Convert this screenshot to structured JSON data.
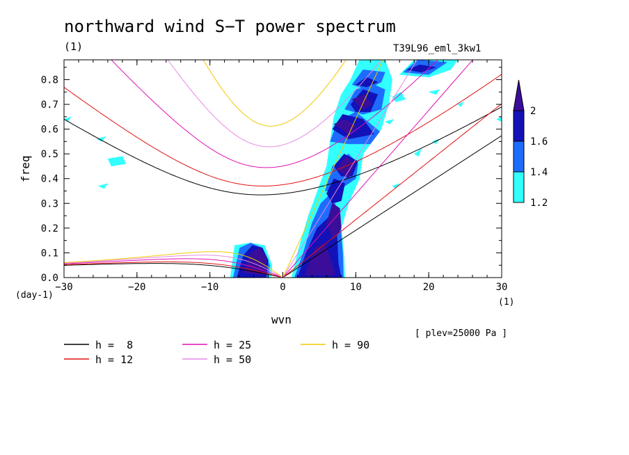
{
  "chart_data": {
    "type": "contour",
    "title": "northward wind S−T power spectrum",
    "unit_left": "(1)",
    "experiment": "T39L96_eml_3kw1",
    "xlabel": "wvn",
    "ylabel": "freq",
    "x_unit": "(1)",
    "y_unit": "(day-1)",
    "annotation": "[ plev=25000 Pa ]",
    "xlim": [
      -30,
      30
    ],
    "ylim": [
      0,
      0.88
    ],
    "x_ticks": [
      -30,
      -20,
      -10,
      0,
      10,
      20,
      30
    ],
    "x_tick_labels": [
      "−30",
      "−20",
      "−10",
      "0",
      "10",
      "20",
      "30"
    ],
    "y_ticks": [
      0,
      0.1,
      0.2,
      0.3,
      0.4,
      0.5,
      0.6,
      0.7,
      0.8
    ],
    "y_tick_labels": [
      "0.0",
      "0.1",
      "0.2",
      "0.3",
      "0.4",
      "0.5",
      "0.6",
      "0.7",
      "0.8"
    ],
    "colorbar": {
      "levels": [
        1.2,
        1.4,
        1.6,
        2
      ],
      "level_labels": [
        "1.2",
        "1.4",
        "1.6",
        "2"
      ],
      "colors": [
        "#33ffff",
        "#1e6cff",
        "#1212b8",
        "#3a0e9a"
      ]
    },
    "dispersion_curves": [
      {
        "label": "h =  8",
        "h": 8,
        "color": "#000000"
      },
      {
        "label": "h = 12",
        "h": 12,
        "color": "#e01010"
      },
      {
        "label": "h = 25",
        "h": 25,
        "color": "#e010b4"
      },
      {
        "label": "h = 50",
        "h": 50,
        "color": "#e48ae4"
      },
      {
        "label": "h = 90",
        "h": 90,
        "color": "#f0c800"
      }
    ],
    "power_regions": [
      {
        "level": 4,
        "polygon": [
          [
            -5.4,
            0.02
          ],
          [
            -4.4,
            0.1
          ],
          [
            -3.2,
            0.12
          ],
          [
            -2.2,
            0.08
          ],
          [
            -2.5,
            0.01
          ]
        ]
      },
      {
        "level": 4,
        "polygon": [
          [
            3.0,
            0.01
          ],
          [
            4.4,
            0.12
          ],
          [
            5.8,
            0.14
          ],
          [
            6.8,
            0.05
          ],
          [
            7.2,
            0.01
          ]
        ]
      },
      {
        "level": 4,
        "polygon": [
          [
            6.0,
            0.22
          ],
          [
            6.8,
            0.3
          ],
          [
            7.8,
            0.28
          ],
          [
            8.0,
            0.2
          ],
          [
            7.0,
            0.15
          ]
        ]
      },
      {
        "level": 4,
        "polygon": [
          [
            7.5,
            0.44
          ],
          [
            8.6,
            0.49
          ],
          [
            9.8,
            0.46
          ],
          [
            9.0,
            0.4
          ]
        ]
      },
      {
        "level": 4,
        "polygon": [
          [
            7.0,
            0.62
          ],
          [
            8.5,
            0.64
          ],
          [
            10.2,
            0.61
          ],
          [
            9.0,
            0.58
          ]
        ]
      },
      {
        "level": 4,
        "polygon": [
          [
            9.5,
            0.72
          ],
          [
            11.2,
            0.74
          ],
          [
            12.2,
            0.7
          ],
          [
            11.0,
            0.68
          ]
        ]
      },
      {
        "level": 3,
        "polygon": [
          [
            -6.3,
            0.0
          ],
          [
            -5.4,
            0.09
          ],
          [
            -4.2,
            0.13
          ],
          [
            -2.8,
            0.12
          ],
          [
            -2.0,
            0.07
          ],
          [
            -2.3,
            0.0
          ]
        ]
      },
      {
        "level": 3,
        "polygon": [
          [
            2.0,
            0.0
          ],
          [
            3.2,
            0.1
          ],
          [
            4.7,
            0.2
          ],
          [
            6.5,
            0.25
          ],
          [
            7.4,
            0.18
          ],
          [
            7.6,
            0.06
          ],
          [
            8.0,
            0.0
          ]
        ]
      },
      {
        "level": 3,
        "polygon": [
          [
            6.0,
            0.34
          ],
          [
            7.0,
            0.4
          ],
          [
            8.5,
            0.38
          ],
          [
            8.0,
            0.31
          ],
          [
            6.8,
            0.3
          ]
        ]
      },
      {
        "level": 3,
        "polygon": [
          [
            7.0,
            0.45
          ],
          [
            8.4,
            0.5
          ],
          [
            10.3,
            0.47
          ],
          [
            9.5,
            0.41
          ],
          [
            8.0,
            0.41
          ]
        ]
      },
      {
        "level": 3,
        "polygon": [
          [
            6.8,
            0.6
          ],
          [
            8.2,
            0.66
          ],
          [
            11.0,
            0.64
          ],
          [
            12.5,
            0.58
          ],
          [
            9.0,
            0.56
          ]
        ]
      },
      {
        "level": 3,
        "polygon": [
          [
            9.3,
            0.7
          ],
          [
            11.0,
            0.76
          ],
          [
            13.0,
            0.74
          ],
          [
            12.0,
            0.67
          ],
          [
            10.0,
            0.67
          ]
        ]
      },
      {
        "level": 3,
        "polygon": [
          [
            10.0,
            0.78
          ],
          [
            11.5,
            0.81
          ],
          [
            13.0,
            0.79
          ],
          [
            11.5,
            0.77
          ]
        ]
      },
      {
        "level": 3,
        "polygon": [
          [
            17.0,
            0.84
          ],
          [
            18.8,
            0.86
          ],
          [
            21.0,
            0.85
          ],
          [
            19.0,
            0.83
          ]
        ]
      },
      {
        "level": 2,
        "polygon": [
          [
            -6.8,
            0.0
          ],
          [
            -5.9,
            0.12
          ],
          [
            -4.4,
            0.14
          ],
          [
            -2.8,
            0.12
          ],
          [
            -1.8,
            0.05
          ],
          [
            -2.0,
            0.0
          ]
        ]
      },
      {
        "level": 2,
        "polygon": [
          [
            1.6,
            0.0
          ],
          [
            2.8,
            0.1
          ],
          [
            4.0,
            0.22
          ],
          [
            5.2,
            0.3
          ],
          [
            6.6,
            0.34
          ],
          [
            7.8,
            0.25
          ],
          [
            8.2,
            0.1
          ],
          [
            8.3,
            0.0
          ]
        ]
      },
      {
        "level": 2,
        "polygon": [
          [
            5.8,
            0.35
          ],
          [
            6.8,
            0.45
          ],
          [
            9.0,
            0.5
          ],
          [
            10.3,
            0.46
          ],
          [
            10.0,
            0.4
          ],
          [
            8.0,
            0.36
          ]
        ]
      },
      {
        "level": 2,
        "polygon": [
          [
            6.5,
            0.55
          ],
          [
            7.5,
            0.63
          ],
          [
            10.0,
            0.67
          ],
          [
            13.3,
            0.59
          ],
          [
            12.0,
            0.54
          ],
          [
            9.0,
            0.54
          ]
        ]
      },
      {
        "level": 2,
        "polygon": [
          [
            8.5,
            0.68
          ],
          [
            10.0,
            0.76
          ],
          [
            12.5,
            0.78
          ],
          [
            14.0,
            0.76
          ],
          [
            13.5,
            0.68
          ],
          [
            11.0,
            0.66
          ]
        ]
      },
      {
        "level": 2,
        "polygon": [
          [
            9.5,
            0.78
          ],
          [
            11.0,
            0.84
          ],
          [
            14.0,
            0.83
          ],
          [
            13.5,
            0.79
          ],
          [
            11.5,
            0.76
          ]
        ]
      },
      {
        "level": 2,
        "polygon": [
          [
            16.5,
            0.83
          ],
          [
            18.5,
            0.88
          ],
          [
            22.5,
            0.87
          ],
          [
            20.0,
            0.82
          ]
        ]
      },
      {
        "level": 1,
        "polygon": [
          [
            -7.2,
            0.0
          ],
          [
            -6.6,
            0.13
          ],
          [
            -4.5,
            0.14
          ],
          [
            -2.5,
            0.13
          ],
          [
            -1.5,
            0.05
          ],
          [
            -1.6,
            0.0
          ]
        ]
      },
      {
        "level": 1,
        "polygon": [
          [
            1.2,
            0.0
          ],
          [
            2.2,
            0.12
          ],
          [
            3.5,
            0.25
          ],
          [
            5.0,
            0.37
          ],
          [
            6.0,
            0.45
          ],
          [
            6.5,
            0.55
          ],
          [
            7.0,
            0.65
          ],
          [
            8.0,
            0.74
          ],
          [
            9.3,
            0.8
          ],
          [
            10.5,
            0.88
          ],
          [
            14.0,
            0.88
          ],
          [
            14.5,
            0.84
          ],
          [
            15.0,
            0.8
          ],
          [
            14.5,
            0.7
          ],
          [
            13.5,
            0.6
          ],
          [
            11.0,
            0.5
          ],
          [
            10.5,
            0.4
          ],
          [
            9.0,
            0.3
          ],
          [
            8.0,
            0.2
          ],
          [
            8.4,
            0.08
          ],
          [
            8.5,
            0.0
          ]
        ]
      },
      {
        "level": 1,
        "polygon": [
          [
            16.0,
            0.82
          ],
          [
            18.0,
            0.88
          ],
          [
            24.0,
            0.88
          ],
          [
            23.0,
            0.84
          ],
          [
            20.0,
            0.81
          ]
        ]
      },
      {
        "level": 1,
        "polygon": [
          [
            -24.0,
            0.48
          ],
          [
            -22.0,
            0.49
          ],
          [
            -21.5,
            0.46
          ],
          [
            -23.5,
            0.45
          ]
        ]
      },
      {
        "level": 1,
        "polygon": [
          [
            -25.5,
            0.56
          ],
          [
            -24.3,
            0.57
          ],
          [
            -24.8,
            0.55
          ]
        ]
      },
      {
        "level": 1,
        "polygon": [
          [
            -25.3,
            0.37
          ],
          [
            -24.0,
            0.38
          ],
          [
            -24.5,
            0.36
          ]
        ]
      },
      {
        "level": 1,
        "polygon": [
          [
            15.0,
            0.73
          ],
          [
            16.2,
            0.75
          ],
          [
            16.8,
            0.72
          ],
          [
            15.5,
            0.71
          ]
        ]
      },
      {
        "level": 1,
        "polygon": [
          [
            20.0,
            0.75
          ],
          [
            21.5,
            0.76
          ],
          [
            21.0,
            0.74
          ]
        ]
      },
      {
        "level": 1,
        "polygon": [
          [
            18.0,
            0.5
          ],
          [
            19.0,
            0.52
          ],
          [
            18.6,
            0.49
          ]
        ]
      },
      {
        "level": 1,
        "polygon": [
          [
            14.0,
            0.63
          ],
          [
            15.2,
            0.64
          ],
          [
            14.7,
            0.62
          ]
        ]
      },
      {
        "level": 1,
        "polygon": [
          [
            20.5,
            0.55
          ],
          [
            21.5,
            0.56
          ],
          [
            21.0,
            0.54
          ]
        ]
      },
      {
        "level": 1,
        "polygon": [
          [
            24.0,
            0.7
          ],
          [
            24.8,
            0.71
          ],
          [
            24.4,
            0.69
          ]
        ]
      },
      {
        "level": 1,
        "polygon": [
          [
            29.3,
            0.64
          ],
          [
            30.0,
            0.65
          ],
          [
            30.0,
            0.63
          ]
        ]
      },
      {
        "level": 1,
        "polygon": [
          [
            15.0,
            0.37
          ],
          [
            16.0,
            0.38
          ],
          [
            15.5,
            0.36
          ]
        ]
      },
      {
        "level": 1,
        "polygon": [
          [
            -30.0,
            0.64
          ],
          [
            -29.0,
            0.65
          ],
          [
            -29.5,
            0.63
          ]
        ]
      }
    ]
  }
}
